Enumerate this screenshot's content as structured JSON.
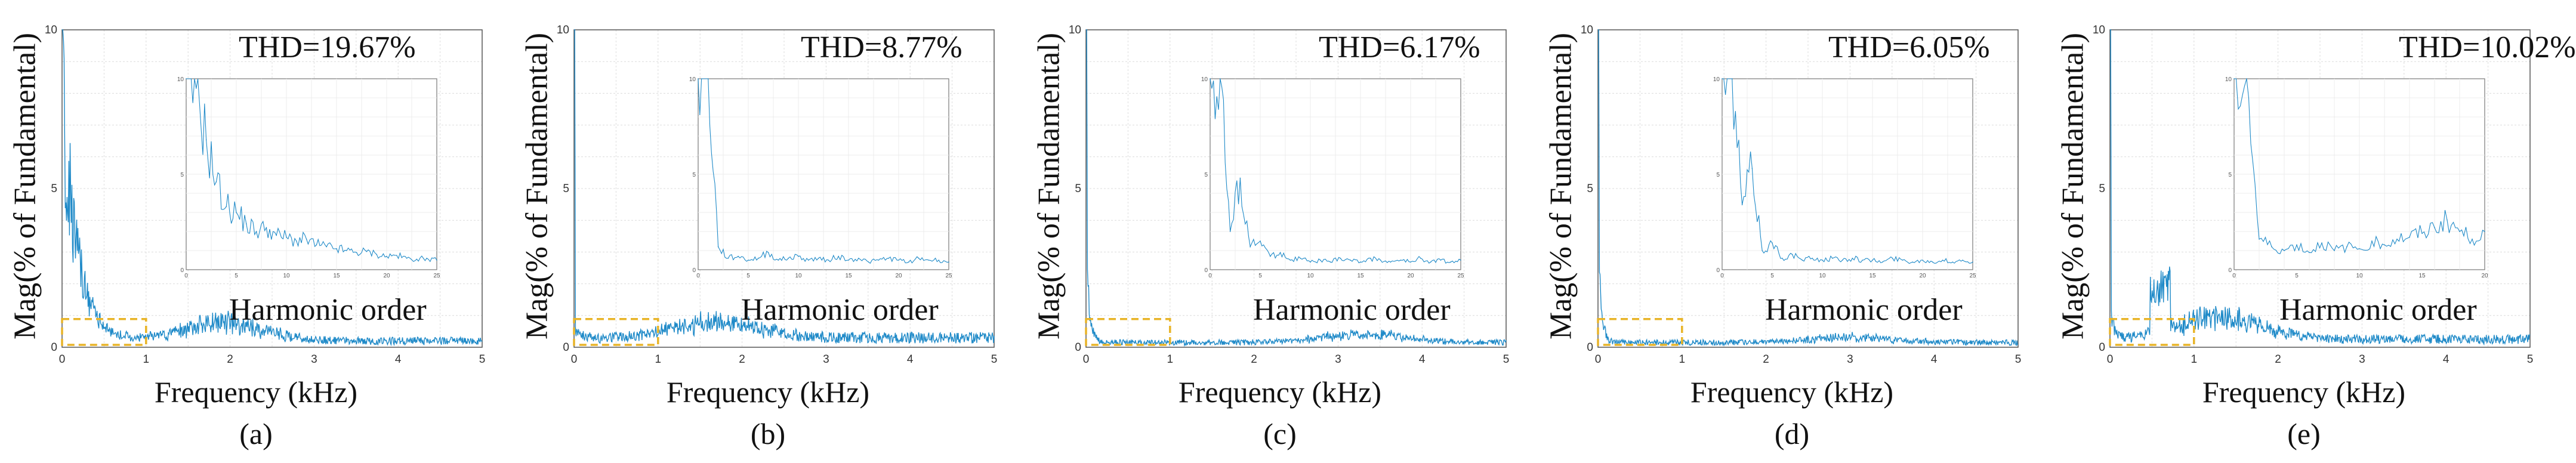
{
  "colors": {
    "trace": "#1f8ac8",
    "zoom_box": "#e8b428",
    "grid": "#dcdcdc",
    "axis": "#555555"
  },
  "chart_data": [
    {
      "type": "line",
      "caption": "(a)",
      "thd_label": "THD=19.67%",
      "xlabel": "Frequency (kHz)",
      "ylabel": "Mag(% of Fundamental)",
      "inset_label": "Harmonic order",
      "xlim": [
        0,
        5
      ],
      "ylim": [
        0,
        10
      ],
      "xticks": [
        0,
        1,
        2,
        3,
        4,
        5
      ],
      "yticks": [
        0,
        5,
        10
      ],
      "grid": true,
      "zoom_region": {
        "x": [
          0,
          1
        ],
        "y": [
          0,
          1
        ]
      },
      "spectrum": {
        "decay_peak": 9.0,
        "decay_width_khz": 0.18,
        "hump_center_khz": 1.9,
        "hump_level": 0.65,
        "floor": 0.2
      },
      "inset": {
        "xlim": [
          0,
          25
        ],
        "ylim": [
          0,
          10
        ],
        "xticks": [
          0,
          5,
          10,
          15,
          20,
          25
        ],
        "yticks": [
          0,
          5,
          10
        ],
        "x": [
          0,
          1,
          2,
          3,
          4,
          5,
          6,
          7,
          8,
          9,
          10,
          11,
          12,
          13,
          14,
          15,
          16,
          17,
          18,
          19,
          20,
          21,
          22,
          23,
          24,
          25
        ],
        "y": [
          10,
          9.5,
          6.8,
          4.6,
          3.3,
          3.0,
          2.4,
          2.0,
          2.2,
          1.8,
          1.7,
          1.5,
          1.6,
          1.3,
          1.2,
          1.1,
          1.0,
          0.9,
          0.95,
          0.8,
          0.7,
          0.75,
          0.6,
          0.55,
          0.6,
          0.5
        ]
      }
    },
    {
      "type": "line",
      "caption": "(b)",
      "thd_label": "THD=8.77%",
      "xlabel": "Frequency (kHz)",
      "ylabel": "Mag(% of Fundamental)",
      "inset_label": "Harmonic order",
      "xlim": [
        0,
        5
      ],
      "ylim": [
        0,
        10
      ],
      "xticks": [
        0,
        1,
        2,
        3,
        4,
        5
      ],
      "yticks": [
        0,
        5,
        10
      ],
      "grid": true,
      "zoom_region": {
        "x": [
          0,
          1
        ],
        "y": [
          0,
          1
        ]
      },
      "spectrum": {
        "decay_peak": 0.5,
        "decay_width_khz": 0.05,
        "hump_center_khz": 1.7,
        "hump_level": 0.55,
        "floor": 0.3
      },
      "inset": {
        "xlim": [
          0,
          25
        ],
        "ylim": [
          0,
          10
        ],
        "xticks": [
          0,
          5,
          10,
          15,
          20,
          25
        ],
        "yticks": [
          0,
          5,
          10
        ],
        "x": [
          0,
          1,
          2,
          3,
          4,
          5,
          6,
          7,
          8,
          9,
          10,
          11,
          12,
          13,
          14,
          15,
          16,
          17,
          18,
          19,
          20,
          21,
          22,
          23,
          24,
          25
        ],
        "y": [
          10,
          10,
          1.2,
          0.6,
          0.7,
          0.5,
          0.6,
          0.9,
          0.5,
          0.6,
          0.7,
          0.5,
          0.6,
          0.5,
          0.7,
          0.5,
          0.6,
          0.4,
          0.5,
          0.6,
          0.5,
          0.4,
          0.6,
          0.5,
          0.5,
          0.4
        ]
      }
    },
    {
      "type": "line",
      "caption": "(c)",
      "thd_label": "THD=6.17%",
      "xlabel": "Frequency (kHz)",
      "ylabel": "Mag(% of Fundamental)",
      "inset_label": "Harmonic order",
      "xlim": [
        0,
        5
      ],
      "ylim": [
        0,
        10
      ],
      "xticks": [
        0,
        1,
        2,
        3,
        4,
        5
      ],
      "yticks": [
        0,
        5,
        10
      ],
      "grid": true,
      "zoom_region": {
        "x": [
          0,
          1
        ],
        "y": [
          0,
          1
        ]
      },
      "spectrum": {
        "decay_peak": 3.5,
        "decay_width_khz": 0.04,
        "hump_center_khz": 3.3,
        "hump_level": 0.3,
        "floor": 0.15
      },
      "inset": {
        "xlim": [
          0,
          25
        ],
        "ylim": [
          0,
          10
        ],
        "xticks": [
          0,
          5,
          10,
          15,
          20,
          25
        ],
        "yticks": [
          0,
          5,
          10
        ],
        "x": [
          0,
          1,
          2,
          3,
          4,
          5,
          6,
          7,
          8,
          9,
          10,
          11,
          12,
          13,
          14,
          15,
          16,
          17,
          18,
          19,
          20,
          21,
          22,
          23,
          24,
          25
        ],
        "y": [
          10,
          10,
          2.0,
          4.8,
          1.2,
          1.5,
          0.7,
          0.9,
          0.5,
          0.6,
          0.4,
          0.5,
          0.4,
          0.6,
          0.5,
          0.4,
          0.6,
          0.5,
          0.4,
          0.5,
          0.4,
          0.6,
          0.4,
          0.5,
          0.4,
          0.5
        ]
      }
    },
    {
      "type": "line",
      "caption": "(d)",
      "thd_label": "THD=6.05%",
      "xlabel": "Frequency (kHz)",
      "ylabel": "Mag(% of Fundamental)",
      "inset_label": "Harmonic order",
      "xlim": [
        0,
        5
      ],
      "ylim": [
        0,
        10
      ],
      "xticks": [
        0,
        1,
        2,
        3,
        4,
        5
      ],
      "yticks": [
        0,
        5,
        10
      ],
      "grid": true,
      "zoom_region": {
        "x": [
          0,
          1
        ],
        "y": [
          0,
          1
        ]
      },
      "spectrum": {
        "decay_peak": 3.5,
        "decay_width_khz": 0.04,
        "hump_center_khz": 3.0,
        "hump_level": 0.2,
        "floor": 0.15
      },
      "inset": {
        "xlim": [
          0,
          25
        ],
        "ylim": [
          0,
          10
        ],
        "xticks": [
          0,
          5,
          10,
          15,
          20,
          25
        ],
        "yticks": [
          0,
          5,
          10
        ],
        "x": [
          0,
          1,
          2,
          3,
          4,
          5,
          6,
          7,
          8,
          9,
          10,
          11,
          12,
          13,
          14,
          15,
          16,
          17,
          18,
          19,
          20,
          21,
          22,
          23,
          24,
          25
        ],
        "y": [
          10,
          10,
          3.4,
          5.3,
          1.0,
          1.4,
          0.6,
          0.8,
          0.5,
          0.6,
          0.5,
          0.6,
          0.5,
          0.6,
          0.5,
          0.5,
          0.4,
          0.6,
          0.5,
          0.4,
          0.5,
          0.4,
          0.5,
          0.4,
          0.5,
          0.4
        ]
      }
    },
    {
      "type": "line",
      "caption": "(e)",
      "thd_label": "THD=10.02%",
      "xlabel": "Frequency (kHz)",
      "ylabel": "Mag(% of Fundamental)",
      "inset_label": "Harmonic order",
      "xlim": [
        0,
        5
      ],
      "ylim": [
        0,
        10
      ],
      "xticks": [
        0,
        1,
        2,
        3,
        4,
        5
      ],
      "yticks": [
        0,
        5,
        10
      ],
      "grid": true,
      "zoom_region": {
        "x": [
          0,
          1
        ],
        "y": [
          0,
          1
        ]
      },
      "spectrum": {
        "decay_peak": 1.2,
        "decay_width_khz": 0.05,
        "hump_center_khz": 1.3,
        "hump_level": 0.85,
        "floor": 0.25,
        "spike_khz": 0.6,
        "spike_level": 2.0
      },
      "inset": {
        "xlim": [
          0,
          20
        ],
        "ylim": [
          0,
          10
        ],
        "xticks": [
          0,
          5,
          10,
          15,
          20
        ],
        "yticks": [
          0,
          5,
          10
        ],
        "x": [
          0,
          1,
          2,
          3,
          4,
          5,
          6,
          7,
          8,
          9,
          10,
          11,
          12,
          13,
          14,
          15,
          16,
          17,
          18,
          19,
          20
        ],
        "y": [
          10,
          10,
          1.6,
          1.2,
          1.0,
          1.3,
          0.9,
          1.4,
          1.0,
          1.2,
          1.1,
          1.5,
          1.3,
          1.6,
          1.7,
          1.9,
          2.2,
          2.6,
          2.0,
          1.6,
          2.0
        ]
      }
    }
  ]
}
